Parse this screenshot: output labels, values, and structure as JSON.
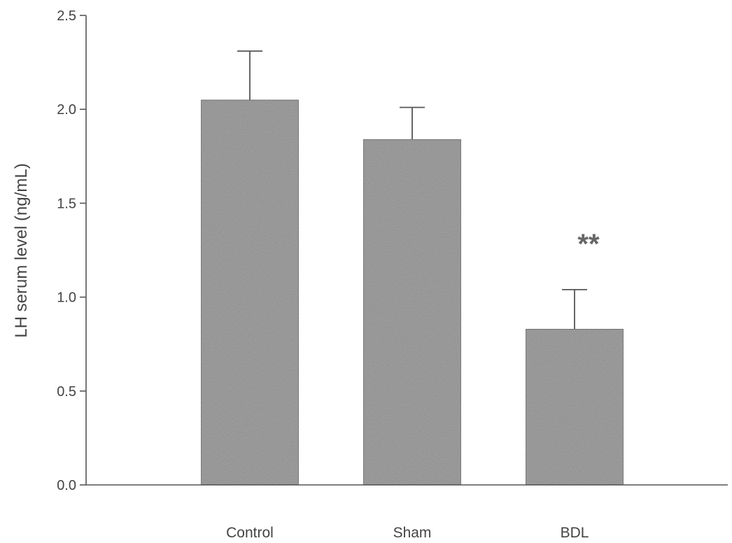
{
  "chart_data": {
    "type": "bar",
    "title": "",
    "xlabel": "",
    "ylabel": "LH serum level (ng/mL)",
    "categories": [
      "Control",
      "Sham",
      "BDL"
    ],
    "values": [
      2.05,
      1.84,
      0.83
    ],
    "error_upper": [
      0.26,
      0.17,
      0.21
    ],
    "ylim": [
      0,
      2.5
    ],
    "yticks": [
      "0.0",
      "0.5",
      "1.0",
      "1.5",
      "2.0",
      "2.5"
    ],
    "annotations": [
      {
        "category": "BDL",
        "text": "**"
      }
    ],
    "bar_color": "#8f8f8f",
    "grid": false,
    "legend": "none"
  }
}
